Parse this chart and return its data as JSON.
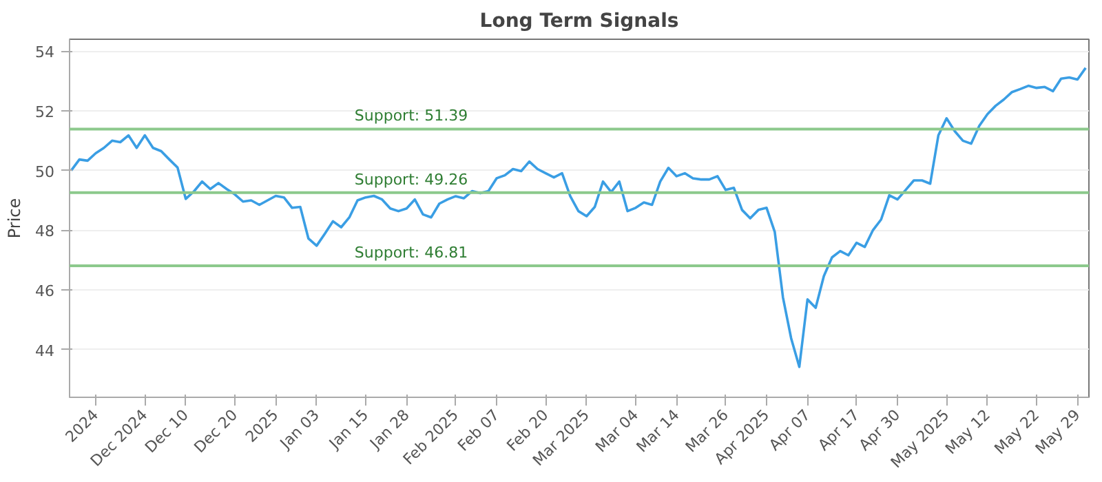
{
  "chart_data": {
    "type": "line",
    "title": "Long Term Signals",
    "ylabel": "Price",
    "ylim": [
      42.4,
      54.4
    ],
    "yticks": [
      44,
      46,
      48,
      50,
      52,
      54
    ],
    "categories": [
      null,
      null,
      null,
      "2024",
      null,
      null,
      null,
      null,
      null,
      "Dec 2024",
      null,
      null,
      null,
      null,
      "Dec 10",
      null,
      null,
      null,
      null,
      null,
      "Dec 20",
      null,
      null,
      null,
      null,
      "2025",
      null,
      null,
      null,
      null,
      "Jan 03",
      null,
      null,
      null,
      null,
      null,
      "Jan 15",
      null,
      null,
      null,
      null,
      "Jan 28",
      null,
      null,
      null,
      null,
      null,
      "Feb 2025",
      null,
      null,
      null,
      null,
      "Feb 07",
      null,
      null,
      null,
      null,
      null,
      "Feb 20",
      null,
      null,
      null,
      null,
      "Mar 2025",
      null,
      null,
      null,
      null,
      null,
      "Mar 04",
      null,
      null,
      null,
      null,
      "Mar 14",
      null,
      null,
      null,
      null,
      null,
      "Mar 26",
      null,
      null,
      null,
      null,
      "Apr 2025",
      null,
      null,
      null,
      null,
      "Apr 07",
      null,
      null,
      null,
      null,
      null,
      "Apr 17",
      null,
      null,
      null,
      null,
      "Apr 30",
      null,
      null,
      null,
      null,
      null,
      "May 2025",
      null,
      null,
      null,
      null,
      "May 12",
      null,
      null,
      null,
      null,
      null,
      "May 22",
      null,
      null,
      null,
      null,
      "May 29",
      null
    ],
    "grid": "y",
    "marker": "none",
    "line_style": "solid",
    "series": [
      {
        "color": "#3a9ee4",
        "values": [
          50.0,
          50.37,
          50.33,
          50.58,
          50.76,
          51.0,
          50.95,
          51.18,
          50.76,
          51.18,
          50.76,
          50.65,
          50.37,
          50.1,
          49.05,
          49.3,
          49.63,
          49.38,
          49.58,
          49.38,
          49.2,
          48.96,
          49.0,
          48.85,
          49.0,
          49.15,
          49.1,
          48.75,
          48.78,
          47.72,
          47.48,
          47.88,
          48.3,
          48.1,
          48.43,
          49.0,
          49.1,
          49.15,
          49.03,
          48.73,
          48.64,
          48.73,
          49.03,
          48.53,
          48.43,
          48.89,
          49.03,
          49.14,
          49.07,
          49.31,
          49.24,
          49.31,
          49.74,
          49.84,
          50.05,
          49.98,
          50.3,
          50.05,
          49.91,
          49.77,
          49.91,
          49.14,
          48.64,
          48.47,
          48.78,
          49.63,
          49.28,
          49.63,
          48.64,
          48.75,
          48.93,
          48.85,
          49.63,
          50.09,
          49.81,
          49.91,
          49.74,
          49.7,
          49.7,
          49.81,
          49.35,
          49.42,
          48.68,
          48.4,
          48.68,
          48.75,
          47.94,
          45.75,
          44.38,
          43.42,
          45.68,
          45.4,
          46.46,
          47.09,
          47.3,
          47.16,
          47.58,
          47.44,
          48.0,
          48.36,
          49.17,
          49.03,
          49.35,
          49.67,
          49.67,
          49.56,
          51.18,
          51.75,
          51.32,
          51.0,
          50.9,
          51.5,
          51.89,
          52.17,
          52.38,
          52.63,
          52.73,
          52.84,
          52.77,
          52.8,
          52.66,
          53.08,
          53.12,
          53.05,
          53.44
        ]
      }
    ],
    "ref_lines": [
      {
        "axis": "y",
        "value": 51.39,
        "label": "Support: 51.39",
        "color": "#8cc98c"
      },
      {
        "axis": "y",
        "value": 49.26,
        "label": "Support: 49.26",
        "color": "#8cc98c"
      },
      {
        "axis": "y",
        "value": 46.81,
        "label": "Support: 46.81",
        "color": "#8cc98c"
      }
    ]
  }
}
